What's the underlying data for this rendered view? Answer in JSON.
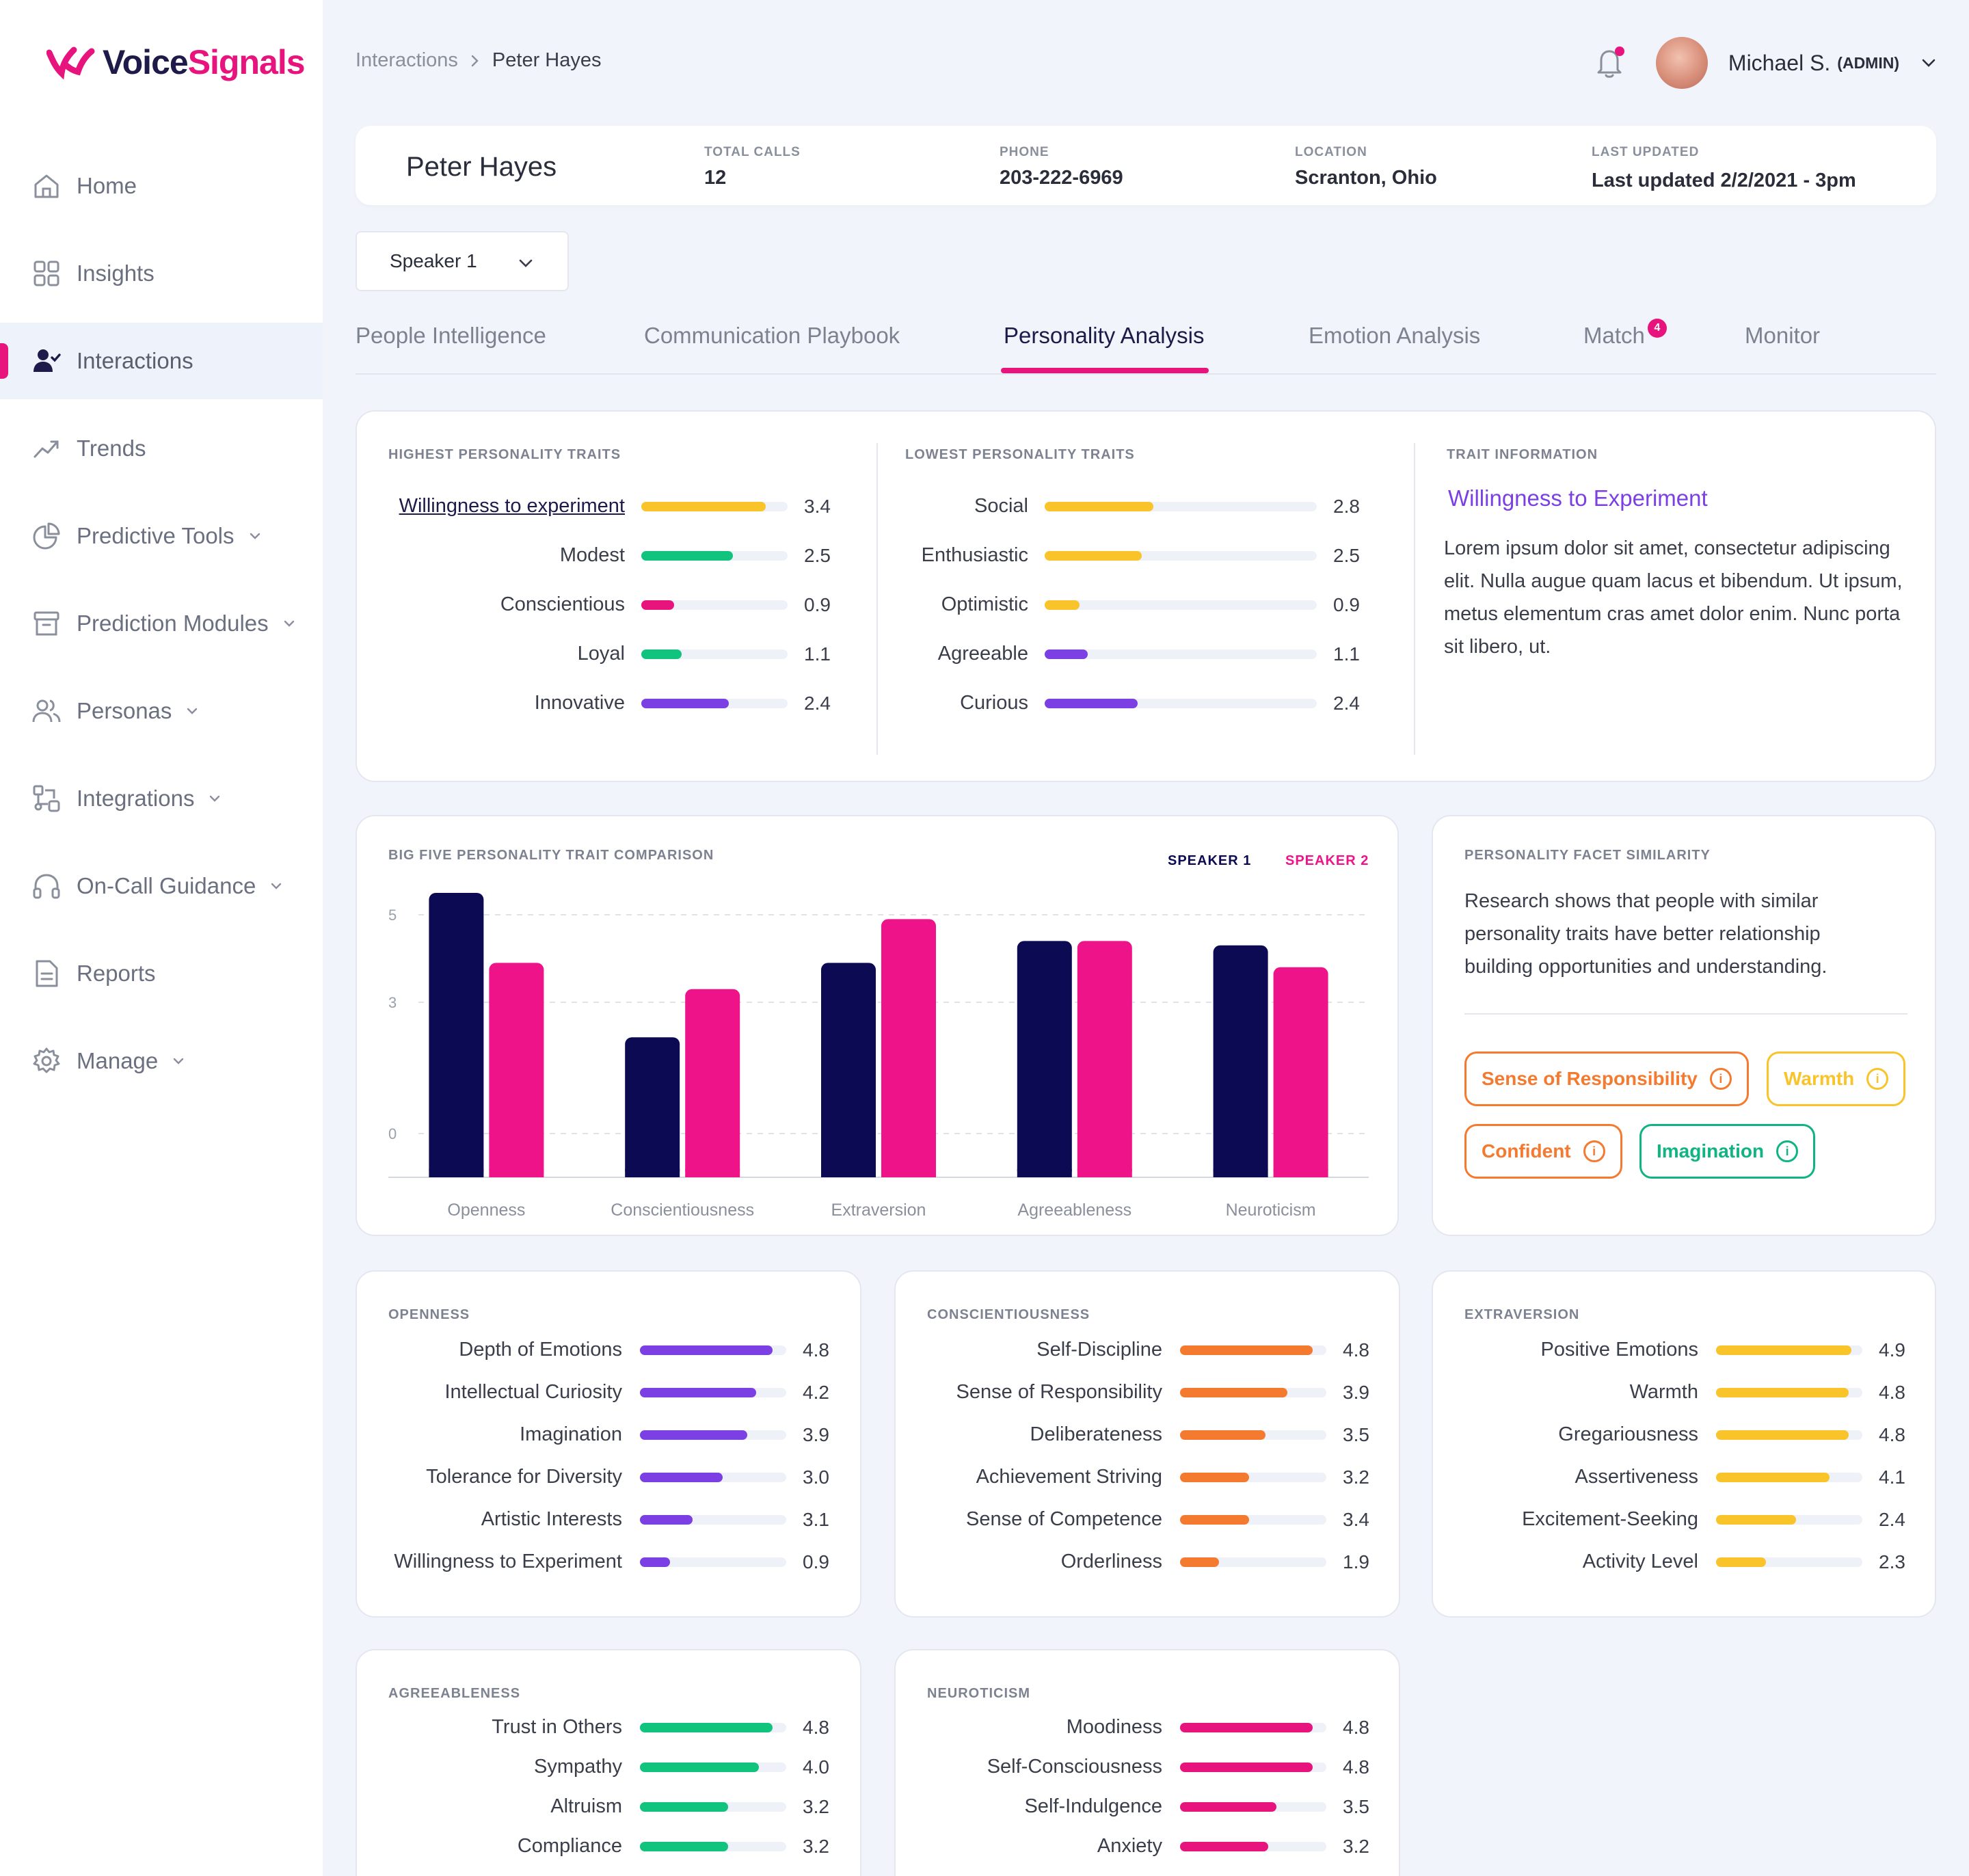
{
  "brand": {
    "name_part1": "Voice",
    "name_part2": "Signals",
    "color": "#e8147e"
  },
  "sidebar": {
    "items": [
      {
        "label": "Home",
        "icon": "home-icon",
        "has_chevron": false
      },
      {
        "label": "Insights",
        "icon": "grid-icon",
        "has_chevron": false
      },
      {
        "label": "Interactions",
        "icon": "user-check-icon",
        "has_chevron": false,
        "active": true
      },
      {
        "label": "Trends",
        "icon": "trend-icon",
        "has_chevron": false
      },
      {
        "label": "Predictive Tools",
        "icon": "pie-chart-icon",
        "has_chevron": true
      },
      {
        "label": "Prediction Modules",
        "icon": "archive-icon",
        "has_chevron": true
      },
      {
        "label": "Personas",
        "icon": "users-icon",
        "has_chevron": true
      },
      {
        "label": "Integrations",
        "icon": "integrations-icon",
        "has_chevron": true
      },
      {
        "label": "On-Call Guidance",
        "icon": "headphones-icon",
        "has_chevron": true
      },
      {
        "label": "Reports",
        "icon": "document-icon",
        "has_chevron": false
      },
      {
        "label": "Manage",
        "icon": "gear-icon",
        "has_chevron": true
      }
    ]
  },
  "breadcrumb": {
    "parent": "Interactions",
    "current": "Peter Hayes"
  },
  "user": {
    "name": "Michael S.",
    "role": "(ADMIN)",
    "notification_dot": true
  },
  "profile": {
    "name": "Peter Hayes",
    "fields": [
      {
        "key": "TOTAL CALLS",
        "value": "12"
      },
      {
        "key": "PHONE",
        "value": "203-222-6969"
      },
      {
        "key": "LOCATION",
        "value": "Scranton, Ohio"
      },
      {
        "key": "LAST UPDATED",
        "value": "Last updated 2/2/2021 - 3pm"
      }
    ]
  },
  "speaker_select": {
    "value": "Speaker 1"
  },
  "tabs": [
    {
      "label": "People Intelligence"
    },
    {
      "label": "Communication Playbook"
    },
    {
      "label": "Personality Analysis",
      "active": true
    },
    {
      "label": "Emotion Analysis"
    },
    {
      "label": "Match",
      "badge": "4"
    },
    {
      "label": "Monitor"
    }
  ],
  "highest_traits": {
    "title": "HIGHEST PERSONALITY TRAITS",
    "max": 4,
    "items": [
      {
        "label": "Willingness to experiment",
        "value": 3.4,
        "display": "3.4",
        "color": "#f8c42a",
        "link": true
      },
      {
        "label": "Modest",
        "value": 2.5,
        "display": "2.5",
        "color": "#10c47e"
      },
      {
        "label": "Conscientious",
        "value": 0.9,
        "display": "0.9",
        "color": "#e8147e"
      },
      {
        "label": "Loyal",
        "value": 1.1,
        "display": "1.1",
        "color": "#10c47e"
      },
      {
        "label": "Innovative",
        "value": 2.4,
        "display": "2.4",
        "color": "#7b3fe4"
      }
    ]
  },
  "lowest_traits": {
    "title": "LOWEST PERSONALITY TRAITS",
    "max": 7,
    "items": [
      {
        "label": "Social",
        "value": 2.8,
        "display": "2.8",
        "color": "#f8c42a"
      },
      {
        "label": "Enthusiastic",
        "value": 2.5,
        "display": "2.5",
        "color": "#f8c42a"
      },
      {
        "label": "Optimistic",
        "value": 0.9,
        "display": "0.9",
        "color": "#f8c42a"
      },
      {
        "label": "Agreeable",
        "value": 1.1,
        "display": "1.1",
        "color": "#7b3fe4"
      },
      {
        "label": "Curious",
        "value": 2.4,
        "display": "2.4",
        "color": "#7b3fe4"
      }
    ]
  },
  "trait_info": {
    "title": "TRAIT INFORMATION",
    "trait": "Willingness to Experiment",
    "body": "Lorem ipsum dolor sit amet, consectetur adipiscing elit. Nulla augue quam lacus et bibendum. Ut ipsum, metus elementum cras amet dolor enim. Nunc porta sit libero, ut."
  },
  "chart_data": {
    "type": "bar",
    "title": "BIG FIVE PERSONALITY TRAIT COMPARISON",
    "categories": [
      "Openness",
      "Conscientiousness",
      "Extraversion",
      "Agreeableness",
      "Neuroticism"
    ],
    "series": [
      {
        "name": "SPEAKER 1",
        "color": "#0c0a52",
        "values": [
          5.5,
          2.2,
          3.9,
          4.4,
          4.3
        ]
      },
      {
        "name": "SPEAKER 2",
        "color": "#ee1388",
        "values": [
          3.9,
          3.3,
          4.9,
          4.4,
          3.8
        ]
      }
    ],
    "yticks": [
      "5",
      "3",
      "0"
    ],
    "ylim": [
      -1,
      6
    ],
    "grid": true,
    "legend_position": "top-right"
  },
  "facet_similarity": {
    "title": "PERSONALITY FACET SIMILARITY",
    "text": "Research shows that people with similar personality traits have better relationship building opportunities and understanding.",
    "pills": [
      {
        "label": "Sense of Responsibility",
        "color": "#f47a30"
      },
      {
        "label": "Warmth",
        "color": "#f8c42a"
      },
      {
        "label": "Confident",
        "color": "#f47a30"
      },
      {
        "label": "Imagination",
        "color": "#10b384"
      }
    ]
  },
  "facet_cards": [
    {
      "title": "OPENNESS",
      "color": "#7b3fe4",
      "max": 5.3,
      "items": [
        {
          "label": "Depth of Emotions",
          "value": 4.8,
          "display": "4.8"
        },
        {
          "label": "Intellectual Curiosity",
          "value": 4.2,
          "display": "4.2"
        },
        {
          "label": "Imagination",
          "value": 3.9,
          "display": "3.9"
        },
        {
          "label": "Tolerance for Diversity",
          "value": 3.0,
          "display": "3.0"
        },
        {
          "label": "Artistic Interests",
          "value": 3.1,
          "display": "3.1",
          "fill": 1.9
        },
        {
          "label": "Willingness to Experiment",
          "value": 0.9,
          "display": "0.9",
          "fill": 1.1
        }
      ]
    },
    {
      "title": "CONSCIENTIOUSNESS",
      "color": "#f47a30",
      "max": 5.3,
      "items": [
        {
          "label": "Self-Discipline",
          "value": 4.8,
          "display": "4.8"
        },
        {
          "label": "Sense of Responsibility",
          "value": 3.9,
          "display": "3.9"
        },
        {
          "label": "Deliberateness",
          "value": 3.5,
          "display": "3.5",
          "fill": 3.1
        },
        {
          "label": "Achievement Striving",
          "value": 3.2,
          "display": "3.2",
          "fill": 2.5
        },
        {
          "label": "Sense of Competence",
          "value": 3.4,
          "display": "3.4",
          "fill": 2.5
        },
        {
          "label": "Orderliness",
          "value": 1.9,
          "display": "1.9",
          "fill": 1.4
        }
      ]
    },
    {
      "title": "EXTRAVERSION",
      "color": "#f8c42a",
      "max": 5.3,
      "items": [
        {
          "label": "Positive Emotions",
          "value": 4.9,
          "display": "4.9"
        },
        {
          "label": "Warmth",
          "value": 4.8,
          "display": "4.8"
        },
        {
          "label": "Gregariousness",
          "value": 4.8,
          "display": "4.8"
        },
        {
          "label": "Assertiveness",
          "value": 4.1,
          "display": "4.1"
        },
        {
          "label": "Excitement-Seeking",
          "value": 2.4,
          "display": "2.4",
          "fill": 2.9
        },
        {
          "label": "Activity Level",
          "value": 2.3,
          "display": "2.3",
          "fill": 1.8
        }
      ]
    },
    {
      "title": "AGREEABLENESS",
      "color": "#10c47e",
      "max": 5.3,
      "items": [
        {
          "label": "Trust in Others",
          "value": 4.8,
          "display": "4.8"
        },
        {
          "label": "Sympathy",
          "value": 4.0,
          "display": "4.0",
          "fill": 4.3
        },
        {
          "label": "Altruism",
          "value": 3.2,
          "display": "3.2"
        },
        {
          "label": "Compliance",
          "value": 3.2,
          "display": "3.2"
        }
      ]
    },
    {
      "title": "NEUROTICISM",
      "color": "#e8147e",
      "max": 5.3,
      "items": [
        {
          "label": "Moodiness",
          "value": 4.8,
          "display": "4.8"
        },
        {
          "label": "Self-Consciousness",
          "value": 4.8,
          "display": "4.8"
        },
        {
          "label": "Self-Indulgence",
          "value": 3.5,
          "display": "3.5"
        },
        {
          "label": "Anxiety",
          "value": 3.2,
          "display": "3.2"
        }
      ]
    }
  ]
}
